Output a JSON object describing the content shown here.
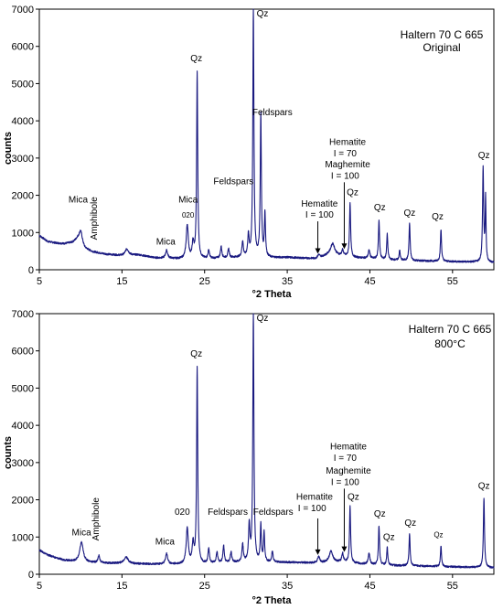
{
  "chart_data": [
    {
      "type": "line",
      "title": "Haltern 70 C 665",
      "subtitle": "Original",
      "xlabel": "°2 Theta",
      "ylabel": "counts",
      "xlim": [
        5,
        60
      ],
      "ylim": [
        0,
        7000
      ],
      "xticks": [
        5,
        15,
        25,
        35,
        45,
        55
      ],
      "yticks": [
        0,
        1000,
        2000,
        3000,
        4000,
        5000,
        6000,
        7000
      ],
      "grid": false,
      "line_color": "#1a1a80",
      "baseline": [
        [
          5,
          920
        ],
        [
          6,
          760
        ],
        [
          7,
          720
        ],
        [
          8,
          700
        ],
        [
          9,
          730
        ],
        [
          9.6,
          800
        ],
        [
          10.5,
          560
        ],
        [
          11.5,
          480
        ],
        [
          13,
          420
        ],
        [
          15,
          380
        ],
        [
          17,
          400
        ],
        [
          19,
          320
        ],
        [
          21,
          300
        ],
        [
          23,
          280
        ],
        [
          25,
          290
        ],
        [
          27,
          310
        ],
        [
          29,
          330
        ],
        [
          31,
          340
        ],
        [
          33,
          320
        ],
        [
          35,
          330
        ],
        [
          37,
          310
        ],
        [
          38.5,
          300
        ],
        [
          40,
          400
        ],
        [
          41,
          380
        ],
        [
          42,
          360
        ],
        [
          43,
          330
        ],
        [
          45,
          300
        ],
        [
          47,
          270
        ],
        [
          49,
          250
        ],
        [
          51,
          240
        ],
        [
          53,
          230
        ],
        [
          55,
          220
        ],
        [
          57,
          210
        ],
        [
          59,
          200
        ],
        [
          60,
          190
        ]
      ],
      "peaks": [
        {
          "x": 10.0,
          "y": 1050,
          "w": 0.25
        },
        {
          "x": 12.0,
          "y": 420,
          "w": 0.12
        },
        {
          "x": 15.6,
          "y": 560,
          "w": 0.25
        },
        {
          "x": 20.4,
          "y": 520,
          "w": 0.15
        },
        {
          "x": 22.9,
          "y": 1200,
          "w": 0.15
        },
        {
          "x": 23.6,
          "y": 700,
          "w": 0.12
        },
        {
          "x": 24.1,
          "y": 5280,
          "w": 0.08
        },
        {
          "x": 25.5,
          "y": 520,
          "w": 0.1
        },
        {
          "x": 27.0,
          "y": 620,
          "w": 0.1
        },
        {
          "x": 27.9,
          "y": 560,
          "w": 0.1
        },
        {
          "x": 29.6,
          "y": 750,
          "w": 0.1
        },
        {
          "x": 30.3,
          "y": 900,
          "w": 0.1
        },
        {
          "x": 30.9,
          "y": 7000,
          "w": 0.08
        },
        {
          "x": 31.8,
          "y": 4150,
          "w": 0.08
        },
        {
          "x": 32.3,
          "y": 1500,
          "w": 0.08
        },
        {
          "x": 38.8,
          "y": 400,
          "w": 0.15
        },
        {
          "x": 40.5,
          "y": 700,
          "w": 0.3
        },
        {
          "x": 41.7,
          "y": 520,
          "w": 0.12
        },
        {
          "x": 42.6,
          "y": 1800,
          "w": 0.08
        },
        {
          "x": 44.9,
          "y": 520,
          "w": 0.12
        },
        {
          "x": 46.1,
          "y": 1330,
          "w": 0.08
        },
        {
          "x": 47.1,
          "y": 950,
          "w": 0.08
        },
        {
          "x": 48.6,
          "y": 520,
          "w": 0.08
        },
        {
          "x": 49.8,
          "y": 1250,
          "w": 0.08
        },
        {
          "x": 53.6,
          "y": 1080,
          "w": 0.08
        },
        {
          "x": 58.7,
          "y": 2730,
          "w": 0.08
        },
        {
          "x": 59.0,
          "y": 1900,
          "w": 0.06
        }
      ],
      "annotations": [
        {
          "text": "Mica",
          "x": 9.7,
          "y": 1800,
          "size": "normal"
        },
        {
          "text": "Amphibole",
          "x": 12.0,
          "y": 800,
          "size": "normal",
          "rotate": -90
        },
        {
          "text": "Mica",
          "x": 20.3,
          "y": 670,
          "size": "normal"
        },
        {
          "text": "Mica",
          "x": 23.0,
          "y": 1800,
          "size": "normal"
        },
        {
          "text": "020",
          "x": 23.0,
          "y": 1400,
          "size": "small"
        },
        {
          "text": "Feldspars",
          "x": 28.5,
          "y": 2300,
          "size": "normal"
        },
        {
          "text": "Qz",
          "x": 24.0,
          "y": 5600,
          "size": "normal"
        },
        {
          "text": "Qz",
          "x": 32.0,
          "y": 6800,
          "size": "normal"
        },
        {
          "text": "Feldspars",
          "x": 33.2,
          "y": 4150,
          "size": "normal"
        },
        {
          "text": "Hematite",
          "x": 38.9,
          "y": 1700,
          "size": "normal"
        },
        {
          "text": "I = 100",
          "x": 38.9,
          "y": 1400,
          "size": "normal"
        },
        {
          "text": "Hematite",
          "x": 42.3,
          "y": 3350,
          "size": "normal"
        },
        {
          "text": "I = 70",
          "x": 42.0,
          "y": 3050,
          "size": "normal"
        },
        {
          "text": "Maghemite",
          "x": 42.3,
          "y": 2750,
          "size": "normal"
        },
        {
          "text": "I = 100",
          "x": 42.0,
          "y": 2450,
          "size": "normal"
        },
        {
          "text": "Qz",
          "x": 42.9,
          "y": 2000,
          "size": "normal"
        },
        {
          "text": "Qz",
          "x": 46.2,
          "y": 1600,
          "size": "normal"
        },
        {
          "text": "Qz",
          "x": 49.8,
          "y": 1450,
          "size": "normal"
        },
        {
          "text": "Qz",
          "x": 53.2,
          "y": 1350,
          "size": "normal"
        },
        {
          "text": "Qz",
          "x": 58.8,
          "y": 3000,
          "size": "normal"
        }
      ],
      "arrows": [
        {
          "x": 38.7,
          "y1": 1300,
          "y2": 430
        },
        {
          "x": 41.9,
          "y1": 2350,
          "y2": 560
        }
      ]
    },
    {
      "type": "line",
      "title": "Haltern 70 C 665",
      "subtitle": "800°C",
      "xlabel": "°2 Theta",
      "ylabel": "counts",
      "xlim": [
        5,
        60
      ],
      "ylim": [
        0,
        7000
      ],
      "xticks": [
        5,
        15,
        25,
        35,
        45,
        55
      ],
      "yticks": [
        0,
        1000,
        2000,
        3000,
        4000,
        5000,
        6000,
        7000
      ],
      "grid": false,
      "line_color": "#1a1a80",
      "baseline": [
        [
          5,
          650
        ],
        [
          6,
          520
        ],
        [
          7,
          440
        ],
        [
          8,
          380
        ],
        [
          9,
          350
        ],
        [
          10,
          330
        ],
        [
          11,
          320
        ],
        [
          13,
          300
        ],
        [
          15,
          290
        ],
        [
          17,
          280
        ],
        [
          19,
          270
        ],
        [
          21,
          270
        ],
        [
          23,
          270
        ],
        [
          25,
          280
        ],
        [
          27,
          300
        ],
        [
          29,
          320
        ],
        [
          31,
          330
        ],
        [
          33,
          320
        ],
        [
          35,
          320
        ],
        [
          37,
          310
        ],
        [
          39,
          300
        ],
        [
          40,
          330
        ],
        [
          41,
          330
        ],
        [
          42,
          320
        ],
        [
          43,
          300
        ],
        [
          45,
          260
        ],
        [
          47,
          240
        ],
        [
          49,
          230
        ],
        [
          51,
          220
        ],
        [
          53,
          210
        ],
        [
          55,
          200
        ],
        [
          57,
          190
        ],
        [
          59,
          180
        ],
        [
          60,
          170
        ]
      ],
      "peaks": [
        {
          "x": 10.1,
          "y": 860,
          "w": 0.25
        },
        {
          "x": 12.2,
          "y": 500,
          "w": 0.12
        },
        {
          "x": 15.5,
          "y": 460,
          "w": 0.3
        },
        {
          "x": 20.4,
          "y": 560,
          "w": 0.15
        },
        {
          "x": 22.9,
          "y": 1230,
          "w": 0.15
        },
        {
          "x": 23.6,
          "y": 800,
          "w": 0.12
        },
        {
          "x": 24.1,
          "y": 5550,
          "w": 0.08
        },
        {
          "x": 25.5,
          "y": 680,
          "w": 0.1
        },
        {
          "x": 26.5,
          "y": 600,
          "w": 0.1
        },
        {
          "x": 27.3,
          "y": 760,
          "w": 0.1
        },
        {
          "x": 28.2,
          "y": 600,
          "w": 0.1
        },
        {
          "x": 29.6,
          "y": 800,
          "w": 0.1
        },
        {
          "x": 30.4,
          "y": 1300,
          "w": 0.1
        },
        {
          "x": 30.9,
          "y": 7000,
          "w": 0.08
        },
        {
          "x": 31.8,
          "y": 1300,
          "w": 0.08
        },
        {
          "x": 32.2,
          "y": 1100,
          "w": 0.08
        },
        {
          "x": 33.2,
          "y": 600,
          "w": 0.1
        },
        {
          "x": 38.8,
          "y": 480,
          "w": 0.15
        },
        {
          "x": 40.3,
          "y": 620,
          "w": 0.25
        },
        {
          "x": 41.7,
          "y": 560,
          "w": 0.12
        },
        {
          "x": 42.6,
          "y": 1820,
          "w": 0.08
        },
        {
          "x": 44.9,
          "y": 560,
          "w": 0.12
        },
        {
          "x": 46.1,
          "y": 1300,
          "w": 0.08
        },
        {
          "x": 47.1,
          "y": 720,
          "w": 0.08
        },
        {
          "x": 49.8,
          "y": 1080,
          "w": 0.08
        },
        {
          "x": 53.6,
          "y": 760,
          "w": 0.08
        },
        {
          "x": 58.8,
          "y": 2050,
          "w": 0.08
        }
      ],
      "annotations": [
        {
          "text": "Mica",
          "x": 10.1,
          "y": 1050,
          "size": "normal"
        },
        {
          "text": "Amphibole",
          "x": 12.2,
          "y": 900,
          "size": "normal",
          "rotate": -90
        },
        {
          "text": "Mica",
          "x": 20.2,
          "y": 800,
          "size": "normal"
        },
        {
          "text": "020",
          "x": 22.3,
          "y": 1600,
          "size": "normal"
        },
        {
          "text": "Feldspars",
          "x": 27.8,
          "y": 1600,
          "size": "normal"
        },
        {
          "text": "Qz",
          "x": 24.0,
          "y": 5850,
          "size": "normal"
        },
        {
          "text": "Qz",
          "x": 32.0,
          "y": 6800,
          "size": "normal"
        },
        {
          "text": "Feldspars",
          "x": 33.3,
          "y": 1600,
          "size": "normal"
        },
        {
          "text": "Hematite",
          "x": 38.3,
          "y": 2000,
          "size": "normal"
        },
        {
          "text": "I = 100",
          "x": 38.0,
          "y": 1700,
          "size": "normal"
        },
        {
          "text": "Hematite",
          "x": 42.4,
          "y": 3350,
          "size": "normal"
        },
        {
          "text": "I = 70",
          "x": 42.0,
          "y": 3050,
          "size": "normal"
        },
        {
          "text": "Maghemite",
          "x": 42.4,
          "y": 2700,
          "size": "normal"
        },
        {
          "text": "I = 100",
          "x": 42.0,
          "y": 2400,
          "size": "normal"
        },
        {
          "text": "Qz",
          "x": 43.0,
          "y": 2000,
          "size": "normal"
        },
        {
          "text": "Qz",
          "x": 46.2,
          "y": 1550,
          "size": "normal"
        },
        {
          "text": "Qz",
          "x": 47.3,
          "y": 920,
          "size": "normal"
        },
        {
          "text": "Qz",
          "x": 49.9,
          "y": 1300,
          "size": "normal"
        },
        {
          "text": "Qz",
          "x": 53.3,
          "y": 1000,
          "size": "small"
        },
        {
          "text": "Qz",
          "x": 58.8,
          "y": 2300,
          "size": "normal"
        }
      ],
      "arrows": [
        {
          "x": 38.7,
          "y1": 1500,
          "y2": 520
        },
        {
          "x": 41.9,
          "y1": 2300,
          "y2": 600
        }
      ]
    }
  ]
}
